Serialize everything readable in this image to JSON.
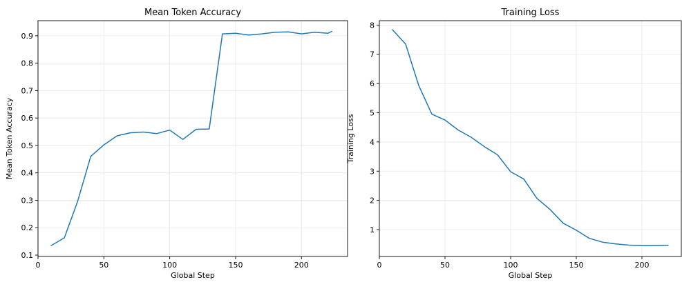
{
  "chart_data": [
    {
      "type": "line",
      "title": "Mean Token Accuracy",
      "xlabel": "Global Step",
      "ylabel": "Mean Token Accuracy",
      "xlim": [
        0,
        235
      ],
      "ylim": [
        0.095,
        0.955
      ],
      "xticks": [
        0,
        50,
        100,
        150,
        200
      ],
      "yticks": [
        0.1,
        0.2,
        0.3,
        0.4,
        0.5,
        0.6,
        0.7,
        0.8,
        0.9
      ],
      "grid": true,
      "color": "#1f77b4",
      "x": [
        10,
        20,
        30,
        40,
        50,
        60,
        70,
        80,
        90,
        100,
        110,
        120,
        130,
        140,
        150,
        160,
        170,
        180,
        190,
        200,
        210,
        220,
        223
      ],
      "y": [
        0.135,
        0.163,
        0.295,
        0.46,
        0.502,
        0.535,
        0.546,
        0.549,
        0.543,
        0.556,
        0.522,
        0.559,
        0.56,
        0.907,
        0.909,
        0.903,
        0.907,
        0.913,
        0.914,
        0.907,
        0.913,
        0.909,
        0.916
      ]
    },
    {
      "type": "line",
      "title": "Training Loss",
      "xlabel": "Global Step",
      "ylabel": "Training Loss",
      "xlim": [
        0,
        230
      ],
      "ylim": [
        0.08,
        8.15
      ],
      "xticks": [
        0,
        50,
        100,
        150,
        200
      ],
      "yticks": [
        1,
        2,
        3,
        4,
        5,
        6,
        7,
        8
      ],
      "grid": true,
      "color": "#1f77b4",
      "x": [
        10,
        20,
        30,
        40,
        50,
        60,
        70,
        80,
        90,
        100,
        110,
        120,
        130,
        140,
        150,
        160,
        170,
        180,
        190,
        200,
        210,
        220
      ],
      "y": [
        7.84,
        7.35,
        5.93,
        4.95,
        4.75,
        4.41,
        4.16,
        3.84,
        3.56,
        2.98,
        2.73,
        2.07,
        1.69,
        1.22,
        0.98,
        0.7,
        0.57,
        0.51,
        0.47,
        0.45,
        0.45,
        0.46
      ]
    }
  ]
}
